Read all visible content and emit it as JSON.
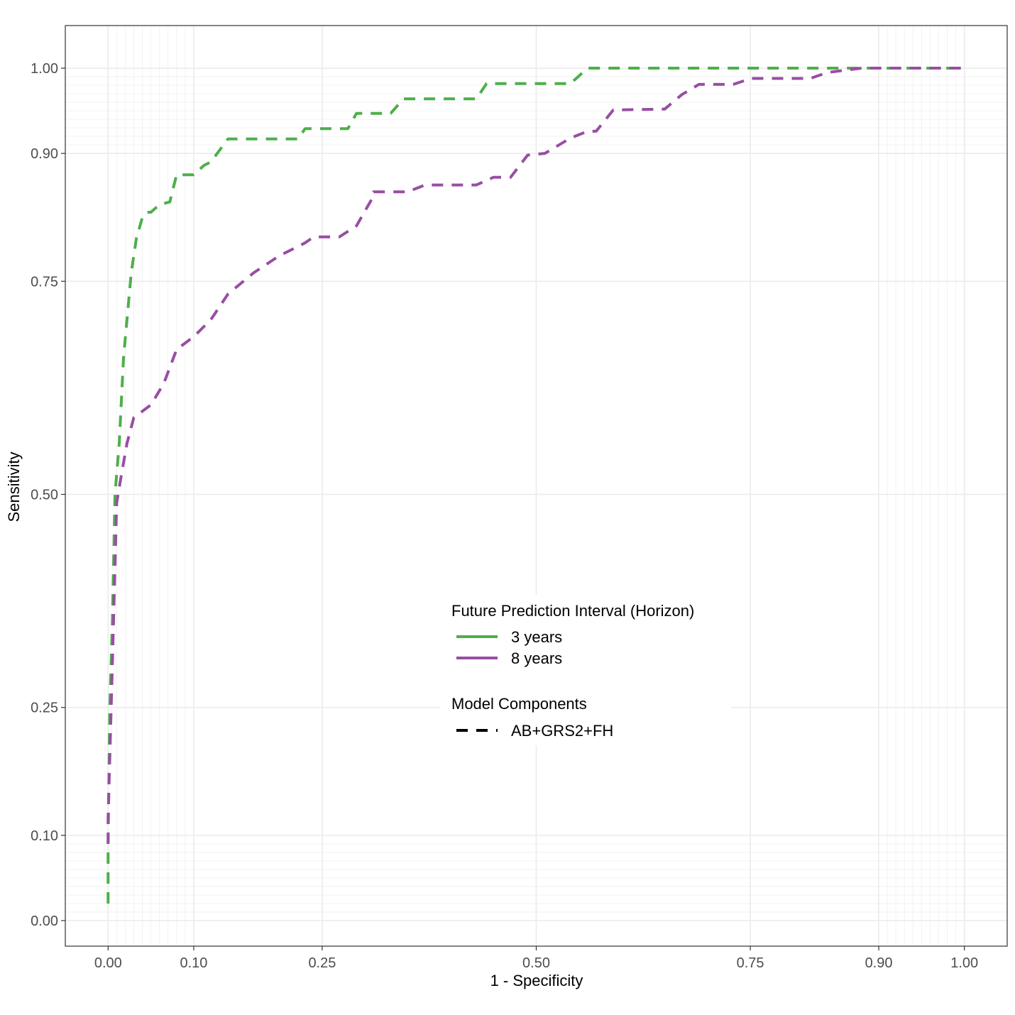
{
  "chart_data": {
    "type": "line",
    "xlabel": "1 - Specificity",
    "ylabel": "Sensitivity",
    "xlim": [
      -0.05,
      1.05
    ],
    "ylim": [
      -0.03,
      1.05
    ],
    "x_ticks": [
      "0.00",
      "0.10",
      "0.25",
      "0.50",
      "0.75",
      "0.90",
      "1.00"
    ],
    "x_tick_values": [
      0,
      0.1,
      0.25,
      0.5,
      0.75,
      0.9,
      1.0
    ],
    "y_ticks": [
      "0.00",
      "0.10",
      "0.25",
      "0.50",
      "0.75",
      "0.90",
      "1.00"
    ],
    "y_tick_values": [
      0,
      0.1,
      0.25,
      0.5,
      0.75,
      0.9,
      1.0
    ],
    "grid": true,
    "legend_placement": "center-right",
    "legend": {
      "color_title": "Future Prediction Interval (Horizon)",
      "linetype_title": "Model Components",
      "linetype_label": "AB+GRS2+FH"
    },
    "series": [
      {
        "name": "3 years",
        "color": "#4DAF4A",
        "linetype": "dashed",
        "points": [
          [
            0,
            0.02
          ],
          [
            0,
            0.09
          ],
          [
            0.002,
            0.25
          ],
          [
            0.005,
            0.35
          ],
          [
            0.008,
            0.5
          ],
          [
            0.013,
            0.56
          ],
          [
            0.018,
            0.66
          ],
          [
            0.027,
            0.76
          ],
          [
            0.033,
            0.8
          ],
          [
            0.04,
            0.825
          ],
          [
            0.045,
            0.831
          ],
          [
            0.05,
            0.831
          ],
          [
            0.06,
            0.84
          ],
          [
            0.072,
            0.843
          ],
          [
            0.08,
            0.875
          ],
          [
            0.09,
            0.875
          ],
          [
            0.1,
            0.875
          ],
          [
            0.112,
            0.886
          ],
          [
            0.12,
            0.89
          ],
          [
            0.14,
            0.917
          ],
          [
            0.16,
            0.917
          ],
          [
            0.2,
            0.917
          ],
          [
            0.222,
            0.917
          ],
          [
            0.23,
            0.929
          ],
          [
            0.28,
            0.929
          ],
          [
            0.29,
            0.947
          ],
          [
            0.33,
            0.947
          ],
          [
            0.345,
            0.964
          ],
          [
            0.43,
            0.964
          ],
          [
            0.442,
            0.982
          ],
          [
            0.54,
            0.982
          ],
          [
            0.56,
            1.0
          ],
          [
            0.6,
            1.0
          ],
          [
            1.0,
            1.0
          ]
        ]
      },
      {
        "name": "8 years",
        "color": "#984EA3",
        "linetype": "dashed",
        "points": [
          [
            0,
            0.09
          ],
          [
            0,
            0.12
          ],
          [
            0.005,
            0.3
          ],
          [
            0.01,
            0.49
          ],
          [
            0.015,
            0.52
          ],
          [
            0.022,
            0.56
          ],
          [
            0.03,
            0.59
          ],
          [
            0.05,
            0.605
          ],
          [
            0.065,
            0.63
          ],
          [
            0.08,
            0.67
          ],
          [
            0.1,
            0.685
          ],
          [
            0.12,
            0.705
          ],
          [
            0.14,
            0.735
          ],
          [
            0.17,
            0.76
          ],
          [
            0.2,
            0.78
          ],
          [
            0.23,
            0.795
          ],
          [
            0.24,
            0.802
          ],
          [
            0.27,
            0.802
          ],
          [
            0.29,
            0.815
          ],
          [
            0.31,
            0.85
          ],
          [
            0.31,
            0.855
          ],
          [
            0.35,
            0.855
          ],
          [
            0.37,
            0.863
          ],
          [
            0.43,
            0.863
          ],
          [
            0.45,
            0.872
          ],
          [
            0.47,
            0.872
          ],
          [
            0.49,
            0.898
          ],
          [
            0.51,
            0.9
          ],
          [
            0.54,
            0.918
          ],
          [
            0.56,
            0.926
          ],
          [
            0.57,
            0.926
          ],
          [
            0.59,
            0.951
          ],
          [
            0.65,
            0.952
          ],
          [
            0.67,
            0.969
          ],
          [
            0.69,
            0.981
          ],
          [
            0.73,
            0.981
          ],
          [
            0.745,
            0.986
          ],
          [
            0.75,
            0.988
          ],
          [
            0.82,
            0.988
          ],
          [
            0.84,
            0.995
          ],
          [
            0.88,
            1.0
          ],
          [
            1.0,
            1.0
          ]
        ]
      }
    ]
  }
}
